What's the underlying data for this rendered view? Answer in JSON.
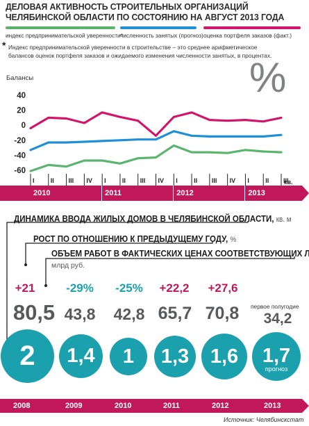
{
  "title": "ДЕЛОВАЯ АКТИВНОСТЬ СТРОИТЕЛЬНЫХ ОРГАНИЗАЦИЙ ЧЕЛЯБИНСКОЙ ОБЛАСТИ  ПО СОСТОЯНИЮ НА АВГУСТ 2013 ГОДА",
  "legend": [
    {
      "label": "индекс предпринимательской уверенности*",
      "color": "#5ab56e"
    },
    {
      "label": "численность занятых (прогноз)",
      "color": "#1f8fd8"
    },
    {
      "label": "оценка портфеля заказов (факт.)",
      "color": "#d1156b"
    }
  ],
  "note_mark": "*",
  "note": "Индекс предпринимательской уверенности в строительстве – это среднее арифметическое балансов оценок портфеля заказов и ожидаемого изменения численности занятых, в процентах.",
  "percent_sign": "%",
  "colors": {
    "magenta": "#c0185a",
    "teal": "#1ba0ad",
    "grey": "#58595b"
  },
  "chart_data": [
    {
      "type": "line",
      "ylabel": "Балансы",
      "ylim": [
        -60,
        40
      ],
      "yticks": [
        40,
        20,
        0,
        -20,
        -40,
        -60
      ],
      "x": [
        "I",
        "II",
        "III",
        "IV",
        "I",
        "II",
        "III",
        "IV",
        "I",
        "II",
        "III",
        "IV",
        "I",
        "II",
        "III"
      ],
      "year_labels": [
        "2010",
        "2011",
        "2012",
        "2013"
      ],
      "x_suffix": "кв.",
      "grid": false,
      "series": [
        {
          "name": "индекс предпринимательской уверенности*",
          "color": "#5ab56e",
          "values": [
            -61,
            -53,
            -55,
            -47,
            -47,
            -51,
            -44,
            -43,
            -27,
            -36,
            -36,
            -37,
            -33,
            -35,
            -36
          ]
        },
        {
          "name": "численность занятых (прогноз)",
          "color": "#1f8fd8",
          "values": [
            -33,
            -23,
            -23,
            -22,
            -21,
            -20,
            -19,
            -19,
            -8,
            -14,
            -15,
            -15,
            -15,
            -15,
            -13
          ]
        },
        {
          "name": "оценка портфеля заказов (факт.)",
          "color": "#d1156b",
          "values": [
            -4,
            10,
            9,
            3,
            17,
            11,
            6,
            -14,
            11,
            17,
            7,
            6,
            7,
            5,
            10
          ]
        }
      ]
    },
    {
      "type": "bar",
      "title": "ДИНАМИКА ВВОДА ЖИЛЫХ ДОМОВ В ЧЕЛЯБИНСКОЙ ОБЛАСТИ",
      "unit": "кв. м",
      "categories": [
        "2008",
        "2009",
        "2010",
        "2011",
        "2012",
        "2013"
      ],
      "values": [
        "2",
        "1,4",
        "1",
        "1,3",
        "1,6",
        "1,7"
      ],
      "forecast_note": "прогноз"
    }
  ],
  "section2": {
    "growth_title": "РОСТ ПО ОТНОШЕНИЮ К ПРЕДЫДУЩЕМУ ГОДУ,",
    "growth_unit": "%",
    "volume_title": "ОБЪЕМ РАБОТ В ФАКТИЧЕСКИХ ЦЕНАХ СООТВЕТСТВУЮЩИХ ЛЕТ,",
    "volume_unit": "млрд руб.",
    "growth": [
      "+21",
      "-29%",
      "-25%",
      "+22,2",
      "+27,6",
      ""
    ],
    "volume": [
      "80,5",
      "43,8",
      "42,8",
      "65,7",
      "70,8",
      "34,2"
    ],
    "half_year_note": "первое полугодие"
  },
  "source": "Источник: Челябинскстат"
}
